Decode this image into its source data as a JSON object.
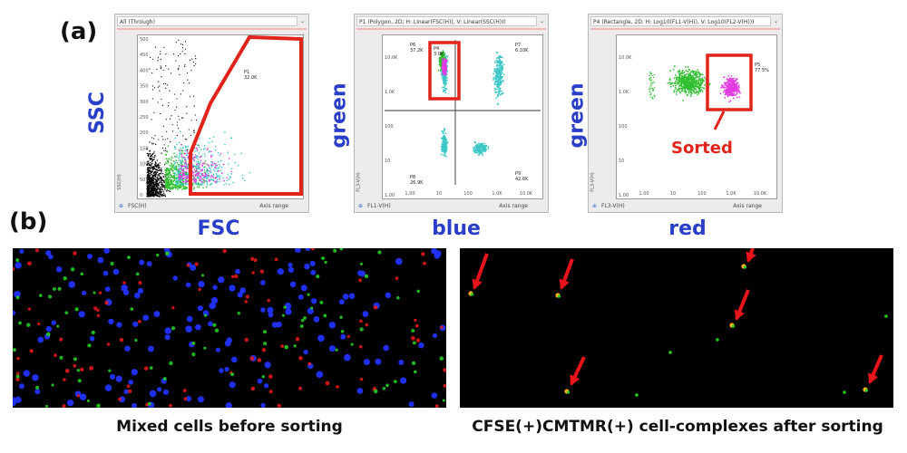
{
  "panel_a": {
    "label": "(a)",
    "plots": [
      {
        "window_title": "All (Through)",
        "y_axis_label": "SSC",
        "x_axis_label": "FSC",
        "y_channel": "SSC(H)",
        "x_channel": "FSC(H)",
        "range_label": "Axis range",
        "y_ticks": [
          "500",
          "450",
          "400",
          "350",
          "300",
          "250",
          "200",
          "150",
          "100",
          "50",
          "0"
        ],
        "gates": [
          {
            "name": "P1",
            "value": "32.0K"
          }
        ]
      },
      {
        "window_title": "P1 (Polygon, 2D; H: Linear(FSC(H)), V: Linear(SSC(H)))",
        "y_axis_label": "green",
        "x_axis_label": "blue",
        "y_channel": "FL3-V(H)",
        "x_channel": "FL1-V(H)",
        "range_label": "Axis range",
        "y_ticks": [
          "10.0K",
          "1.0K",
          "100",
          "10",
          "1.00"
        ],
        "x_ticks": [
          "1.00",
          "10",
          "100",
          "1.0K",
          "10.0K"
        ],
        "gates": [
          {
            "name": "P6",
            "value": "37.2K"
          },
          {
            "name": "P4",
            "value": "3.0K"
          },
          {
            "name": "P7",
            "value": "6.10K"
          },
          {
            "name": "P8",
            "value": "26.9K"
          },
          {
            "name": "P9",
            "value": "42.6K"
          }
        ]
      },
      {
        "window_title": "P4 (Rectangle, 2D; H: Log10(FL1-V(H)), V: Log10(FL2-V(H)))",
        "y_axis_label": "green",
        "x_axis_label": "red",
        "y_channel": "FL3-V(H)",
        "x_channel": "FL3-V(H)",
        "range_label": "Axis range",
        "y_ticks": [
          "10.0K",
          "1.0K",
          "100",
          "10",
          "1.00"
        ],
        "x_ticks": [
          "1.00",
          "10",
          "100",
          "1.0K",
          "10.0K"
        ],
        "gates": [
          {
            "name": "P5",
            "value": "77.5%"
          }
        ],
        "annotation": "Sorted"
      }
    ]
  },
  "panel_b": {
    "label": "(b)",
    "left_caption": "Mixed cells before sorting",
    "right_caption": "CFSE(+)CMTMR(+) cell-complexes after sorting"
  },
  "colors": {
    "gate": "#e2231a",
    "axis_label": "#2a3fc9",
    "events_black": "#000000",
    "events_green": "#2fbf2f",
    "events_cyan": "#3cc7c7",
    "events_magenta": "#e23ce2",
    "cell_blue": "#2233ff",
    "cell_red": "#e01818",
    "cell_green": "#22cc22",
    "arrow": "#e8141a"
  }
}
